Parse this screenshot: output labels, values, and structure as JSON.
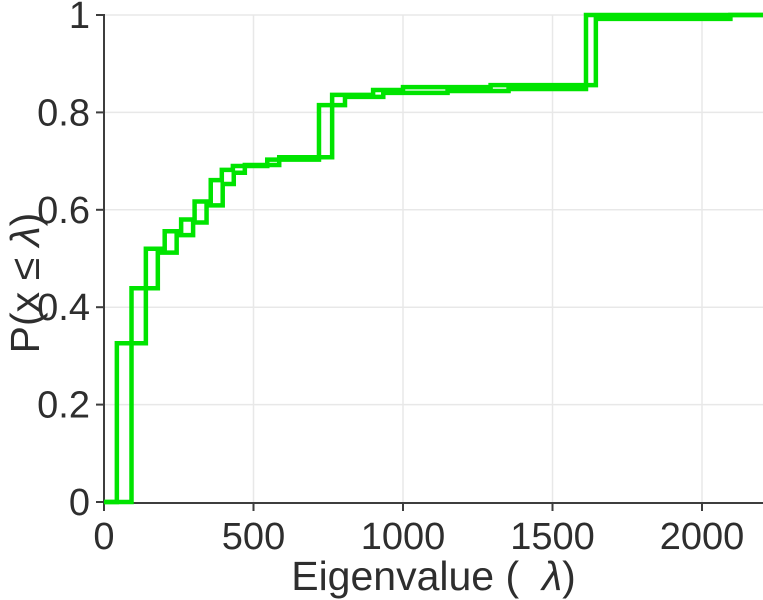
{
  "chart_data": {
    "type": "step",
    "title": "",
    "xlabel": {
      "pre": "Eigenvalue (  ",
      "symbol": "λ",
      "post": ")"
    },
    "ylabel": {
      "pre": "P(x ≤ ",
      "symbol": "λ",
      "post": ")"
    },
    "xlim": [
      0,
      2204
    ],
    "ylim": [
      0,
      1
    ],
    "x_ticks": [
      0,
      500,
      1000,
      1500,
      2000
    ],
    "y_tick_labels": [
      "0",
      "0.2",
      "0.4",
      "0.6",
      "0.8",
      "1"
    ],
    "y_tick_values": [
      0,
      0.2,
      0.4,
      0.6,
      0.8,
      1
    ],
    "grid": true,
    "legend": null,
    "series": [
      {
        "name": "ecdf-1",
        "color": "#00e400",
        "points": [
          [
            43,
            0.326
          ],
          [
            140,
            0.52
          ],
          [
            203,
            0.556
          ],
          [
            258,
            0.58
          ],
          [
            303,
            0.617
          ],
          [
            357,
            0.661
          ],
          [
            394,
            0.682
          ],
          [
            431,
            0.69
          ],
          [
            546,
            0.703
          ],
          [
            719,
            0.815
          ],
          [
            806,
            0.832
          ],
          [
            934,
            0.84
          ],
          [
            1149,
            0.844
          ],
          [
            1353,
            0.848
          ],
          [
            1612,
            1.0
          ]
        ]
      },
      {
        "name": "ecdf-2",
        "color": "#00e400",
        "points": [
          [
            92,
            0.439
          ],
          [
            180,
            0.512
          ],
          [
            243,
            0.548
          ],
          [
            298,
            0.574
          ],
          [
            343,
            0.609
          ],
          [
            397,
            0.653
          ],
          [
            434,
            0.676
          ],
          [
            471,
            0.692
          ],
          [
            586,
            0.708
          ],
          [
            763,
            0.836
          ],
          [
            900,
            0.846
          ],
          [
            1000,
            0.852
          ],
          [
            1293,
            0.856
          ],
          [
            1645,
            0.992
          ],
          [
            2095,
            1.0
          ]
        ]
      }
    ]
  },
  "style": {
    "line_color": "#00e400",
    "axis_color": "#3d3d3d",
    "grid_color": "#e8e8e8",
    "text_color": "#2e2e2e",
    "background": "#ffffff"
  }
}
